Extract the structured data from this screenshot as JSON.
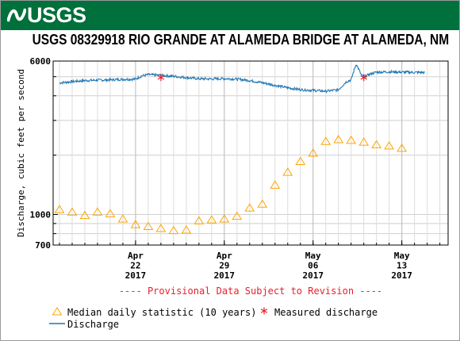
{
  "header": {
    "logo_text": "USGS"
  },
  "chart_data": {
    "type": "line",
    "title": "USGS 08329918 RIO GRANDE AT ALAMEDA BRIDGE AT ALAMEDA, NM",
    "ylabel": "Discharge, cubic feet per second",
    "y_scale": "log",
    "ylim": [
      700,
      6000
    ],
    "y_ticks": [
      {
        "value": 6000,
        "label": "6000"
      },
      {
        "value": 1000,
        "label": "1000"
      },
      {
        "value": 700,
        "label": "700"
      }
    ],
    "y_minor_ticks": [
      800,
      900,
      2000,
      3000,
      4000,
      5000
    ],
    "xlim": [
      "2017-04-16",
      "2017-05-17"
    ],
    "x_ticks": [
      {
        "date": "2017-04-22",
        "label": [
          "Apr",
          "22",
          "2017"
        ]
      },
      {
        "date": "2017-04-29",
        "label": [
          "Apr",
          "29",
          "2017"
        ]
      },
      {
        "date": "2017-05-06",
        "label": [
          "May",
          "06",
          "2017"
        ]
      },
      {
        "date": "2017-05-13",
        "label": [
          "May",
          "13",
          "2017"
        ]
      }
    ],
    "grid": true,
    "provisional_note": "---- Provisional Data Subject to Revision ----",
    "legend": {
      "median": "Median daily statistic (10 years)",
      "measured": "Measured discharge",
      "discharge": "Discharge"
    },
    "colors": {
      "discharge": "#1f77b4",
      "median": "#ffa500",
      "measured": "#e8202a",
      "note": "#e8202a"
    },
    "series": [
      {
        "name": "Median daily statistic (10 years)",
        "type": "scatter",
        "marker": "triangle",
        "points": [
          [
            "2017-04-16",
            1060
          ],
          [
            "2017-04-17",
            1030
          ],
          [
            "2017-04-18",
            990
          ],
          [
            "2017-04-19",
            1030
          ],
          [
            "2017-04-20",
            1010
          ],
          [
            "2017-04-21",
            950
          ],
          [
            "2017-04-22",
            890
          ],
          [
            "2017-04-23",
            870
          ],
          [
            "2017-04-24",
            850
          ],
          [
            "2017-04-25",
            830
          ],
          [
            "2017-04-26",
            835
          ],
          [
            "2017-04-27",
            930
          ],
          [
            "2017-04-28",
            940
          ],
          [
            "2017-04-29",
            950
          ],
          [
            "2017-04-30",
            980
          ],
          [
            "2017-05-01",
            1080
          ],
          [
            "2017-05-02",
            1130
          ],
          [
            "2017-05-03",
            1410
          ],
          [
            "2017-05-04",
            1640
          ],
          [
            "2017-05-05",
            1860
          ],
          [
            "2017-05-06",
            2050
          ],
          [
            "2017-05-07",
            2350
          ],
          [
            "2017-05-08",
            2400
          ],
          [
            "2017-05-09",
            2380
          ],
          [
            "2017-05-10",
            2330
          ],
          [
            "2017-05-11",
            2260
          ],
          [
            "2017-05-12",
            2230
          ],
          [
            "2017-05-13",
            2170
          ]
        ]
      },
      {
        "name": "Measured discharge",
        "type": "scatter",
        "marker": "asterisk",
        "points": [
          [
            "2017-04-24",
            4950
          ],
          [
            "2017-05-10",
            4950
          ]
        ]
      },
      {
        "name": "Discharge",
        "type": "line",
        "points": [
          [
            "2017-04-16",
            4650
          ],
          [
            "2017-04-17",
            4720
          ],
          [
            "2017-04-18",
            4780
          ],
          [
            "2017-04-19",
            4800
          ],
          [
            "2017-04-20",
            4820
          ],
          [
            "2017-04-21",
            4850
          ],
          [
            "2017-04-22",
            4860
          ],
          [
            "2017-04-22.5",
            5050
          ],
          [
            "2017-04-23",
            5120
          ],
          [
            "2017-04-24",
            5080
          ],
          [
            "2017-04-25",
            5020
          ],
          [
            "2017-04-26",
            4950
          ],
          [
            "2017-04-27",
            4880
          ],
          [
            "2017-04-28",
            4870
          ],
          [
            "2017-04-29",
            4890
          ],
          [
            "2017-04-30",
            4860
          ],
          [
            "2017-05-01",
            4780
          ],
          [
            "2017-05-02",
            4660
          ],
          [
            "2017-05-03",
            4520
          ],
          [
            "2017-05-04",
            4390
          ],
          [
            "2017-05-05",
            4300
          ],
          [
            "2017-05-06",
            4260
          ],
          [
            "2017-05-07",
            4220
          ],
          [
            "2017-05-08",
            4290
          ],
          [
            "2017-05-08.6",
            4700
          ],
          [
            "2017-05-09",
            4820
          ],
          [
            "2017-05-09.4",
            5800
          ],
          [
            "2017-05-09.8",
            5100
          ],
          [
            "2017-05-10",
            4980
          ],
          [
            "2017-05-10.5",
            5150
          ],
          [
            "2017-05-11",
            5270
          ],
          [
            "2017-05-12",
            5290
          ],
          [
            "2017-05-13",
            5270
          ],
          [
            "2017-05-14",
            5260
          ],
          [
            "2017-05-14.8",
            5250
          ]
        ]
      }
    ]
  }
}
